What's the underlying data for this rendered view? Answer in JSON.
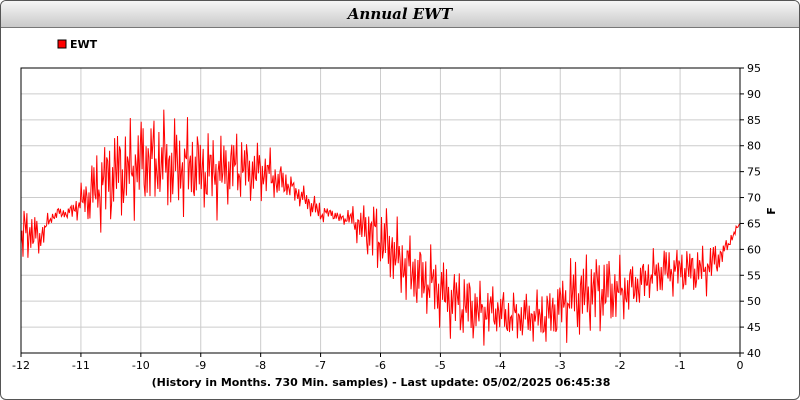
{
  "window": {
    "title": "Annual EWT"
  },
  "footer": "(History in Months. 730 Min. samples) - Last update: 05/02/2025 06:45:38",
  "chart_data": {
    "type": "line",
    "title": "Annual EWT",
    "xlabel": "",
    "ylabel": "F",
    "xlim": [
      -12,
      0
    ],
    "ylim": [
      40,
      95
    ],
    "x_ticks": [
      "-12",
      "-11",
      "-10",
      "-9",
      "-8",
      "-7",
      "-6",
      "-5",
      "-4",
      "-3",
      "-2",
      "-1",
      "0"
    ],
    "y_ticks": [
      "40",
      "45",
      "50",
      "55",
      "60",
      "65",
      "70",
      "75",
      "80",
      "85",
      "90",
      "95"
    ],
    "grid": true,
    "legend_position": "top-left",
    "series": [
      {
        "name": "EWT",
        "color": "#ff0000",
        "x": [
          -12,
          -11.9,
          -11.8,
          -11.7,
          -11.6,
          -11.5,
          -11.4,
          -11.3,
          -11.2,
          -11.1,
          -11,
          -10.9,
          -10.8,
          -10.7,
          -10.6,
          -10.5,
          -10.4,
          -10.3,
          -10.2,
          -10.1,
          -10,
          -9.9,
          -9.8,
          -9.7,
          -9.6,
          -9.5,
          -9.4,
          -9.3,
          -9.2,
          -9.1,
          -9,
          -8.9,
          -8.8,
          -8.7,
          -8.6,
          -8.5,
          -8.4,
          -8.3,
          -8.2,
          -8.1,
          -8,
          -7.9,
          -7.8,
          -7.7,
          -7.6,
          -7.5,
          -7.4,
          -7.3,
          -7.2,
          -7.1,
          -7,
          -6.9,
          -6.8,
          -6.7,
          -6.6,
          -6.5,
          -6.4,
          -6.3,
          -6.2,
          -6.1,
          -6,
          -5.9,
          -5.8,
          -5.7,
          -5.6,
          -5.5,
          -5.4,
          -5.3,
          -5.2,
          -5.1,
          -5,
          -4.9,
          -4.8,
          -4.7,
          -4.6,
          -4.5,
          -4.4,
          -4.3,
          -4.2,
          -4.1,
          -4,
          -3.9,
          -3.8,
          -3.7,
          -3.6,
          -3.5,
          -3.4,
          -3.3,
          -3.2,
          -3.1,
          -3,
          -2.9,
          -2.8,
          -2.7,
          -2.6,
          -2.5,
          -2.4,
          -2.3,
          -2.2,
          -2.1,
          -2,
          -1.9,
          -1.8,
          -1.7,
          -1.6,
          -1.5,
          -1.4,
          -1.3,
          -1.2,
          -1.1,
          -1,
          -0.9,
          -0.8,
          -0.7,
          -0.6,
          -0.5,
          -0.4,
          -0.3,
          -0.2,
          -0.1,
          0
        ],
        "mid": [
          61,
          64,
          63,
          62,
          64,
          66,
          67,
          67,
          67,
          68,
          69,
          70,
          71,
          72,
          73,
          74,
          75,
          75,
          75,
          76,
          77,
          77,
          77,
          77,
          77,
          76,
          76,
          76,
          76,
          76,
          75,
          75,
          75,
          75,
          75,
          76,
          76,
          76,
          75,
          75,
          75,
          75,
          74,
          73,
          73,
          72,
          71,
          70,
          69,
          68,
          67,
          67,
          67,
          66,
          66,
          66,
          65,
          64,
          64,
          63,
          62,
          61,
          60,
          58,
          57,
          56,
          55,
          54,
          54,
          53,
          52,
          51,
          50,
          50,
          49,
          49,
          48,
          48,
          48,
          48,
          48,
          47,
          47,
          47,
          47,
          47,
          47,
          47,
          47,
          48,
          49,
          50,
          51,
          51,
          51,
          52,
          52,
          52,
          52,
          52,
          52,
          52,
          53,
          53,
          54,
          55,
          55,
          56,
          56,
          56,
          56,
          56,
          56,
          56,
          56,
          57,
          58,
          59,
          61,
          63,
          65
        ],
        "amp": [
          5,
          5,
          4,
          3,
          2,
          1,
          1,
          1,
          1,
          2,
          3,
          4,
          6,
          7,
          8,
          8,
          8,
          8,
          8,
          8,
          8,
          8,
          8,
          8,
          8,
          8,
          8,
          8,
          8,
          7,
          7,
          7,
          7,
          7,
          6,
          6,
          6,
          6,
          5,
          5,
          5,
          4,
          4,
          3,
          3,
          2,
          2,
          2,
          2,
          2,
          2,
          1,
          1,
          1,
          1,
          2,
          3,
          4,
          5,
          6,
          6,
          6,
          6,
          6,
          6,
          6,
          6,
          6,
          6,
          6,
          6,
          6,
          6,
          6,
          6,
          6,
          5,
          5,
          5,
          4,
          4,
          4,
          4,
          4,
          4,
          4,
          4,
          5,
          5,
          5,
          5,
          6,
          7,
          7,
          7,
          7,
          7,
          7,
          6,
          6,
          5,
          5,
          4,
          4,
          4,
          4,
          4,
          4,
          4,
          4,
          4,
          4,
          4,
          4,
          4,
          4,
          3,
          2,
          1,
          1,
          0
        ]
      }
    ]
  }
}
